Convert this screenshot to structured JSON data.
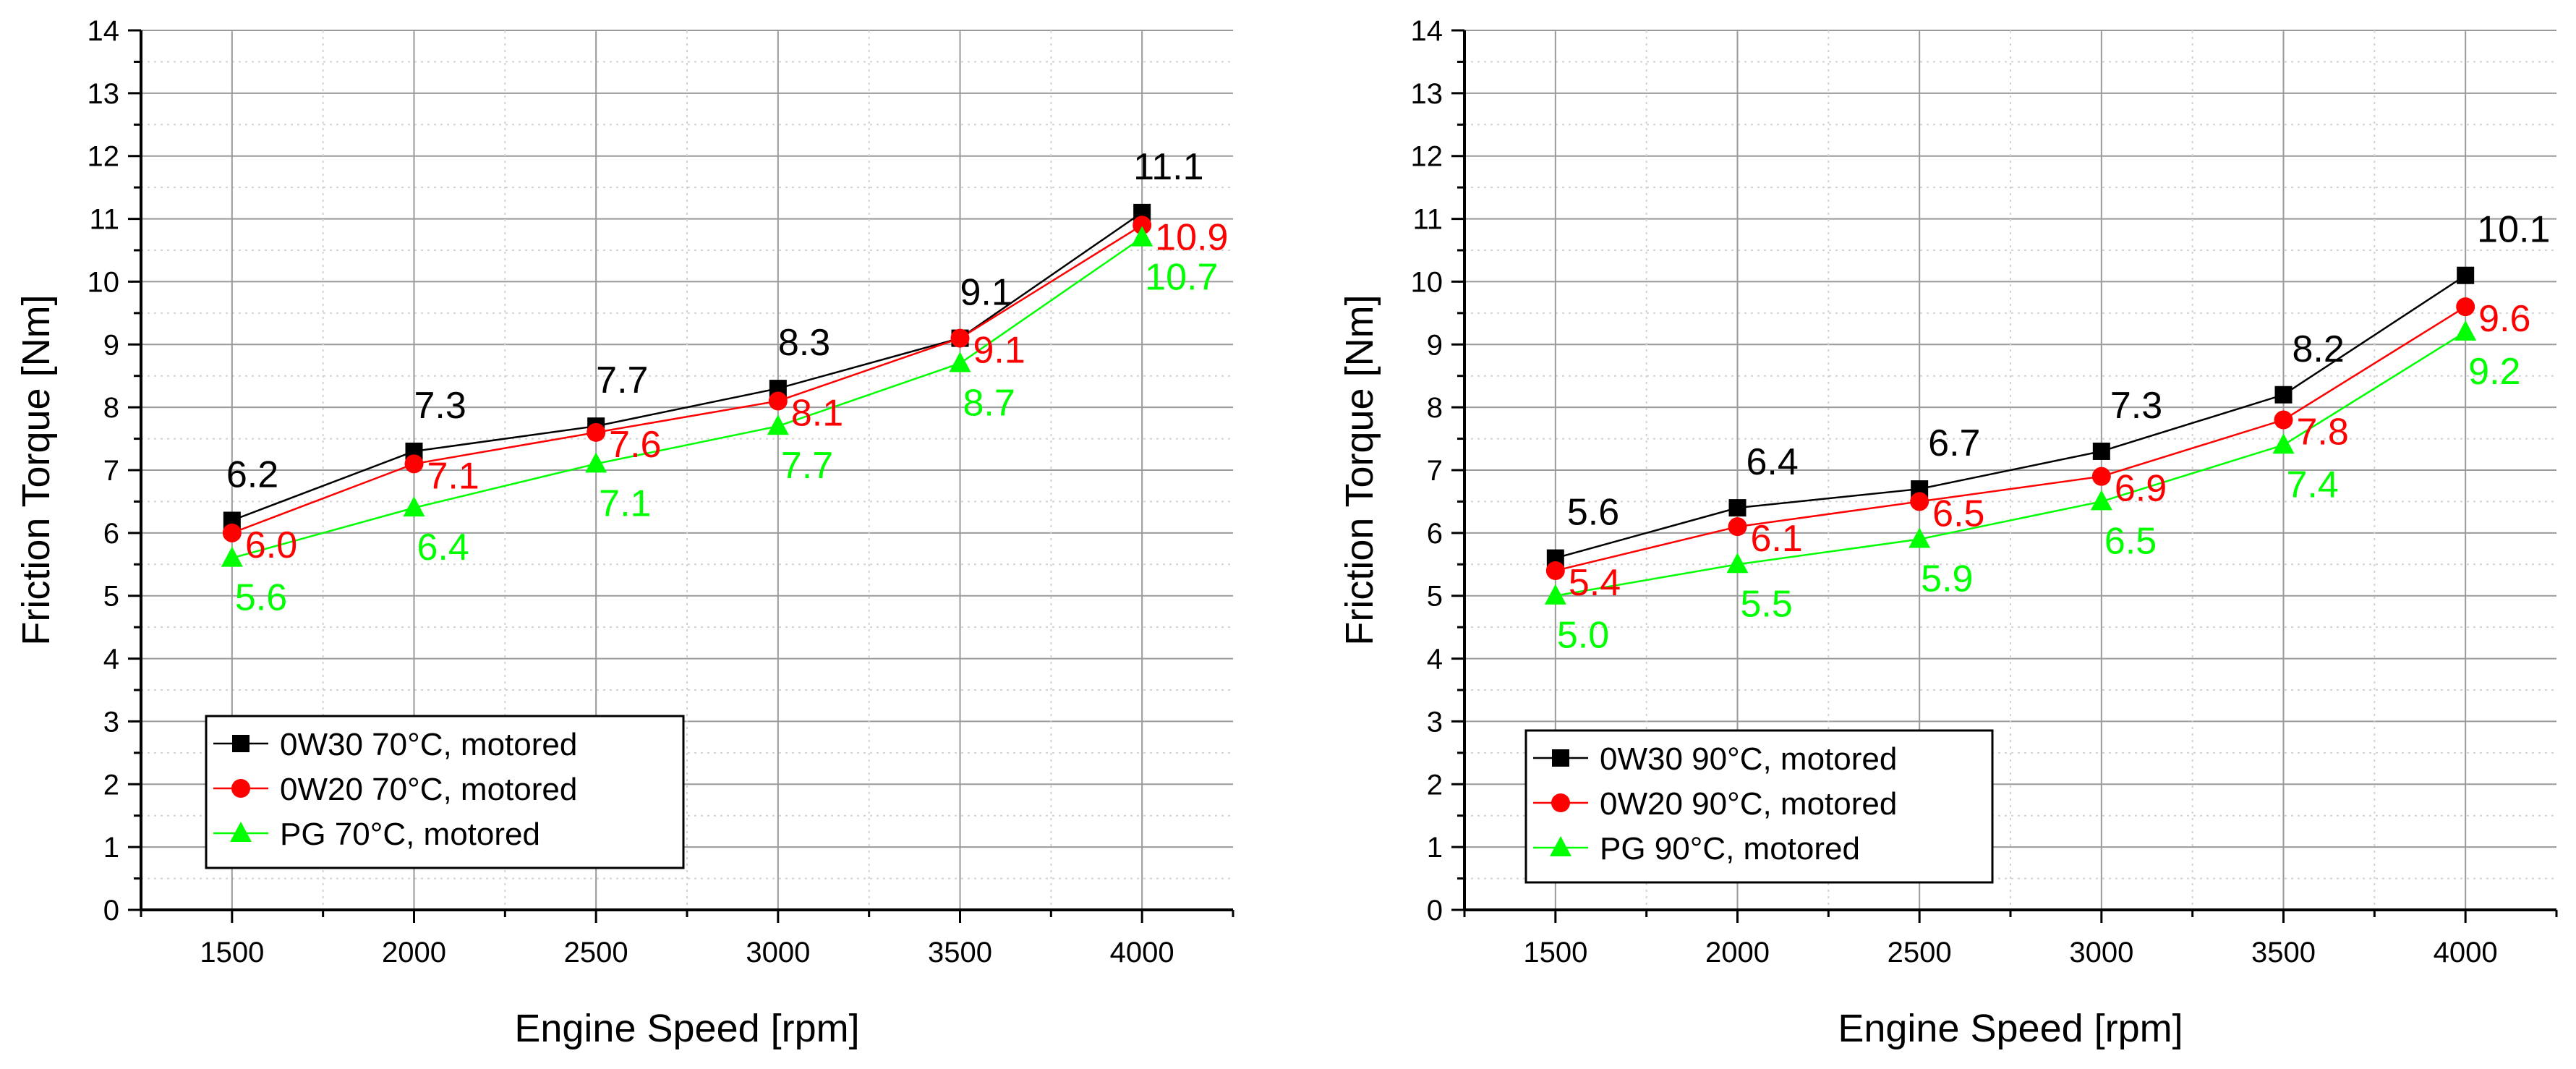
{
  "chart_data": [
    {
      "type": "line",
      "xlabel": "Engine Speed [rpm]",
      "ylabel": "Friction Torque [Nm]",
      "xlim": [
        1250,
        4250
      ],
      "ylim": [
        0,
        14
      ],
      "categories": [
        1500,
        2000,
        2500,
        3000,
        3500,
        4000
      ],
      "grid": true,
      "legend_position": "bottom-left",
      "series": [
        {
          "name": "0W30 70°C, motored",
          "color": "#000000",
          "marker": "square",
          "values": [
            6.2,
            7.3,
            7.7,
            8.3,
            9.1,
            11.1
          ],
          "labels": [
            "6.2",
            "7.3",
            "7.7",
            "8.3",
            "9.1",
            "11.1"
          ]
        },
        {
          "name": "0W20 70°C, motored",
          "color": "#ff0000",
          "marker": "circle",
          "values": [
            6.0,
            7.1,
            7.6,
            8.1,
            9.1,
            10.9
          ],
          "labels": [
            "6.0",
            "7.1",
            "7.6",
            "8.1",
            "9.1",
            "10.9"
          ]
        },
        {
          "name": "PG 70°C, motored",
          "color": "#00ff00",
          "marker": "triangle",
          "values": [
            5.6,
            6.4,
            7.1,
            7.7,
            8.7,
            10.7
          ],
          "labels": [
            "5.6",
            "6.4",
            "7.1",
            "7.7",
            "8.7",
            "10.7"
          ]
        }
      ]
    },
    {
      "type": "line",
      "xlabel": "Engine Speed [rpm]",
      "ylabel": "Friction Torque [Nm]",
      "xlim": [
        1250,
        4250
      ],
      "ylim": [
        0,
        14
      ],
      "categories": [
        1500,
        2000,
        2500,
        3000,
        3500,
        4000
      ],
      "grid": true,
      "legend_position": "bottom-left",
      "series": [
        {
          "name": "0W30 90°C, motored",
          "color": "#000000",
          "marker": "square",
          "values": [
            5.6,
            6.4,
            6.7,
            7.3,
            8.2,
            10.1
          ],
          "labels": [
            "5.6",
            "6.4",
            "6.7",
            "7.3",
            "8.2",
            "10.1"
          ]
        },
        {
          "name": "0W20 90°C, motored",
          "color": "#ff0000",
          "marker": "circle",
          "values": [
            5.4,
            6.1,
            6.5,
            6.9,
            7.8,
            9.6
          ],
          "labels": [
            "5.4",
            "6.1",
            "6.5",
            "6.9",
            "7.8",
            "9.6"
          ]
        },
        {
          "name": "PG 90°C, motored",
          "color": "#00ff00",
          "marker": "triangle",
          "values": [
            5.0,
            5.5,
            5.9,
            6.5,
            7.4,
            9.2
          ],
          "labels": [
            "5.0",
            "5.5",
            "5.9",
            "6.5",
            "7.4",
            "9.2"
          ]
        }
      ]
    }
  ]
}
